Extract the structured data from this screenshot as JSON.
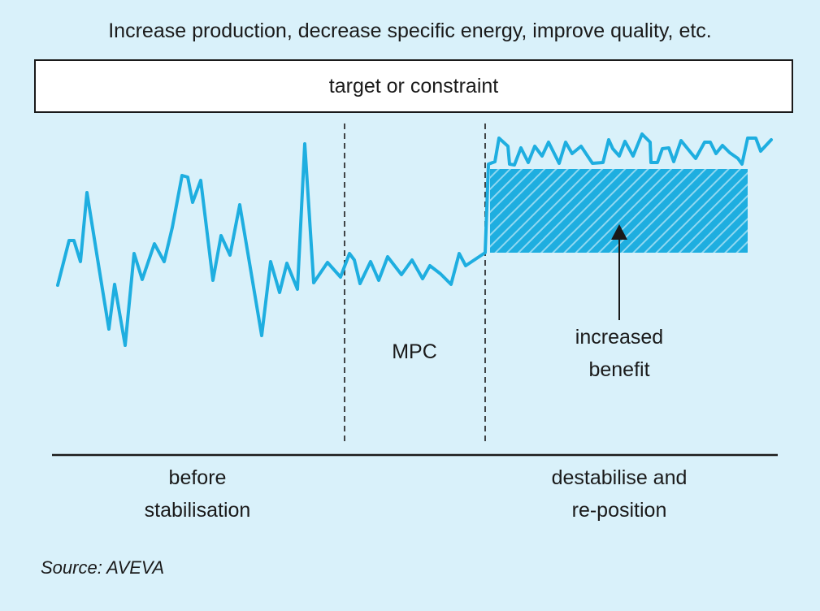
{
  "heading": "Increase production, decrease specific energy, improve quality, etc.",
  "target_label": "target or constraint",
  "labels": {
    "mpc": "MPC",
    "benefit_line1": "increased",
    "benefit_line2": "benefit",
    "before_line1": "before",
    "before_line2": "stabilisation",
    "destab_line1": "destabilise and",
    "destab_line2": "re-position"
  },
  "source": "Source: AVEVA",
  "colors": {
    "background": "#d9f1fa",
    "signal": "#1eaee0",
    "text": "#1a1a1a",
    "box": "#ffffff"
  }
}
